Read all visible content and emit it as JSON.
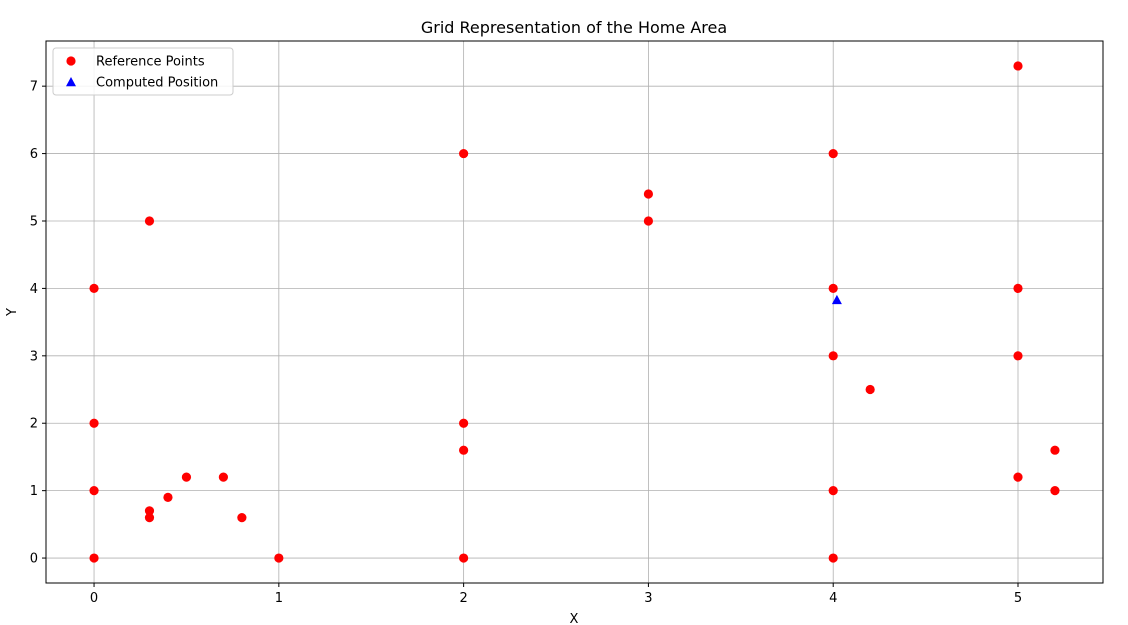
{
  "chart_data": {
    "type": "scatter",
    "title": "Grid Representation of the Home Area",
    "xlabel": "X",
    "ylabel": "Y",
    "xlim": [
      -0.26,
      5.46
    ],
    "ylim": [
      -0.37,
      7.67
    ],
    "xticks": [
      0,
      1,
      2,
      3,
      4,
      5
    ],
    "yticks": [
      0,
      1,
      2,
      3,
      4,
      5,
      6,
      7
    ],
    "grid": true,
    "legend_position": "top-left",
    "series": [
      {
        "name": "Reference Points",
        "marker": "circle",
        "color": "#ff0000",
        "points": [
          [
            0,
            0
          ],
          [
            0,
            1
          ],
          [
            0,
            2
          ],
          [
            0,
            4
          ],
          [
            0.3,
            0.6
          ],
          [
            0.3,
            0.7
          ],
          [
            0.3,
            5
          ],
          [
            0.4,
            0.9
          ],
          [
            0.5,
            1.2
          ],
          [
            0.7,
            1.2
          ],
          [
            0.8,
            0.6
          ],
          [
            1,
            0
          ],
          [
            2,
            0
          ],
          [
            2,
            1.6
          ],
          [
            2,
            2
          ],
          [
            2,
            6
          ],
          [
            3,
            5
          ],
          [
            3,
            5.4
          ],
          [
            4,
            0
          ],
          [
            4,
            1
          ],
          [
            4,
            3
          ],
          [
            4,
            4
          ],
          [
            4,
            6
          ],
          [
            4.2,
            2.5
          ],
          [
            5,
            1.2
          ],
          [
            5,
            3
          ],
          [
            5,
            4
          ],
          [
            5,
            7.3
          ],
          [
            5.2,
            1
          ],
          [
            5.2,
            1.6
          ]
        ]
      },
      {
        "name": "Computed Position",
        "marker": "triangle",
        "color": "#0000ff",
        "points": [
          [
            4.02,
            3.83
          ]
        ]
      }
    ]
  }
}
